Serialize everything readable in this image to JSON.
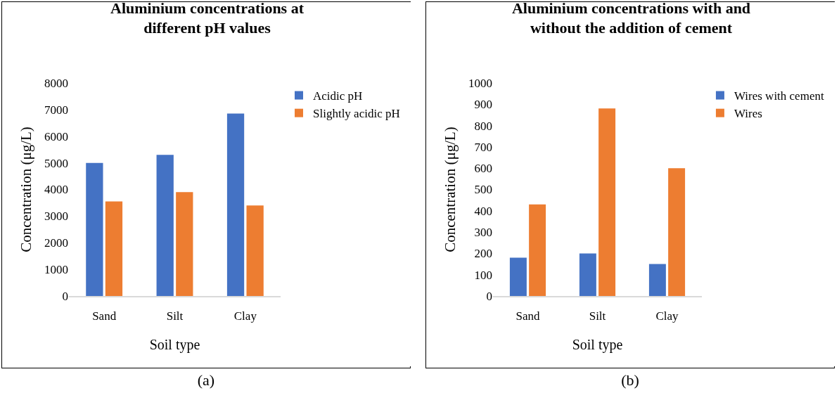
{
  "chart_data": [
    {
      "type": "bar",
      "title": "Aluminium concentrations at different pH values",
      "xlabel": "Soil type",
      "ylabel": "Concentration (μg/L)",
      "categories": [
        "Sand",
        "Silt",
        "Clay"
      ],
      "series": [
        {
          "name": "Acidic pH",
          "color": "#4472c4",
          "values": [
            5000,
            5300,
            6850
          ]
        },
        {
          "name": "Slightly acidic pH",
          "color": "#ed7d31",
          "values": [
            3550,
            3900,
            3400
          ]
        }
      ],
      "ylim": [
        0,
        8000
      ],
      "yticks": [
        0,
        1000,
        2000,
        3000,
        4000,
        5000,
        6000,
        7000,
        8000
      ],
      "grid": false,
      "legend": "top right",
      "annotations": [
        "(a)"
      ]
    },
    {
      "type": "bar",
      "title": "Aluminium concentrations with and without the addition of cement",
      "xlabel": "Soil type",
      "ylabel": "Concentration (μg/L)",
      "categories": [
        "Sand",
        "Silt",
        "Clay"
      ],
      "series": [
        {
          "name": "Wires with cement",
          "color": "#4472c4",
          "values": [
            180,
            200,
            150
          ]
        },
        {
          "name": "Wires",
          "color": "#ed7d31",
          "values": [
            430,
            880,
            600
          ]
        }
      ],
      "ylim": [
        0,
        1000
      ],
      "yticks": [
        0,
        100,
        200,
        300,
        400,
        500,
        600,
        700,
        800,
        900,
        1000
      ],
      "grid": false,
      "legend": "top right",
      "annotations": [
        "(b)"
      ]
    }
  ]
}
